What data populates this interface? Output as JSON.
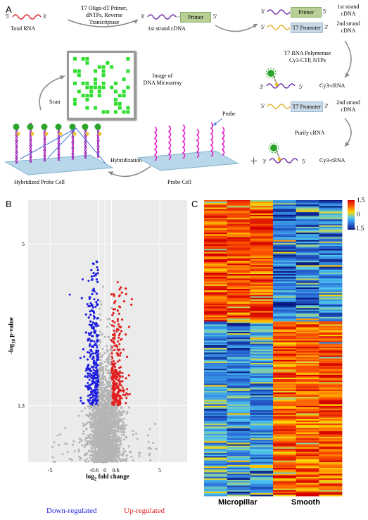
{
  "panel_a": {
    "letter": "A",
    "total_rna": "Total RNA",
    "step1_line1": "T7 Oligo-dT  Primer,",
    "step1_line2": "dNTPs, Reverse",
    "step1_line3": "Transcriptase",
    "first_strand_label": "1st strand cDNA",
    "primer_label": "Primer",
    "t7_promoter_label": "T7 Promoter",
    "first_strand_line1": "1st strand",
    "first_strand_line2": "cDNA",
    "second_strand_line1": "2nd strand",
    "second_strand_line2": "cDNA",
    "polymerase_line1": "T7 RNA  Polymerase",
    "polymerase_line2": "Cy3-CTP,  NTPs",
    "cy3_crna": "Cy3-cRNA",
    "image_line1": "Image of",
    "image_line2": "DNA Microarray",
    "scan": "Scan",
    "probe": "Probe",
    "purify": "Purify cRNA",
    "hybridization": "Hybridization",
    "hybridized_probe_cell": "Hybridized  Probe Cell",
    "probe_cell": "Probe Cell",
    "plus": "+",
    "end3": "3'",
    "end5": "5'"
  },
  "panel_b": {
    "letter": "B",
    "ylabel_main": "-log",
    "ylabel_sub": "10",
    "ylabel_rest": " p-value",
    "xlabel_main": "log",
    "xlabel_sub": "2",
    "xlabel_rest": " fold change",
    "x_ticks": [
      "-5",
      "-0.6",
      "0",
      "0.6",
      "5"
    ],
    "y_ticks": [
      "5",
      "1.3"
    ],
    "legend_down": "Down-regulated",
    "legend_up": "Up-regulated",
    "colors": {
      "down": "#1f1fe0",
      "up": "#e01f1f",
      "ns": "#b5b5b5",
      "bg": "#ebebeb"
    }
  },
  "panel_c": {
    "letter": "C",
    "colorbar_ticks": [
      "1.5",
      "0",
      "-1.5"
    ],
    "group_labels": [
      "Micropillar",
      "Smooth"
    ]
  },
  "chart_data": [
    {
      "type": "scatter",
      "title": "",
      "xlabel": "log2 fold change",
      "ylabel": "-log10 p-value",
      "xlim": [
        -7,
        7.5
      ],
      "ylim": [
        0,
        6
      ],
      "grid": true,
      "thresholds": {
        "x": [
          -0.6,
          0.6
        ],
        "y": 1.3
      },
      "series": [
        {
          "name": "Down-regulated",
          "color": "#1f1fe0",
          "x_range": [
            -2.2,
            -0.6
          ],
          "y_range": [
            1.3,
            5.6
          ]
        },
        {
          "name": "Up-regulated",
          "color": "#e01f1f",
          "x_range": [
            0.6,
            2.9
          ],
          "y_range": [
            1.3,
            5.1
          ]
        }
      ]
    },
    {
      "type": "heatmap",
      "title": "",
      "columns": 6,
      "groups": [
        "Micropillar",
        "Smooth"
      ],
      "scale": [
        -1.5,
        0,
        1.5
      ]
    }
  ]
}
